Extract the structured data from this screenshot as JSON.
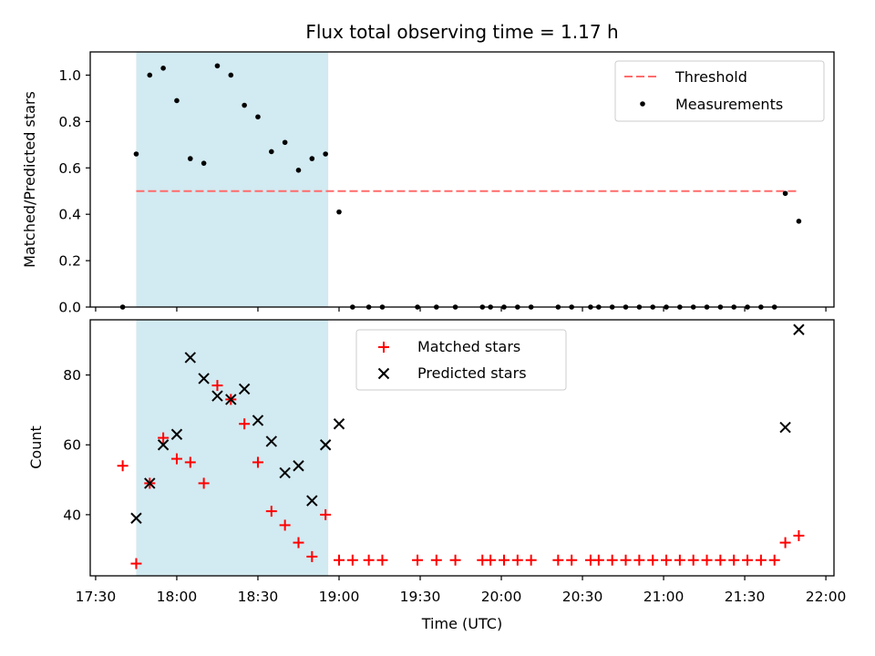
{
  "chart_data": [
    {
      "type": "scatter",
      "title": "Flux total observing time = 1.17 h",
      "xlabel": "",
      "ylabel": "Matched/Predicted stars",
      "xlim": [
        "17:28",
        "22:03"
      ],
      "ylim": [
        0,
        1.1
      ],
      "yticks": [
        "0.0",
        "0.2",
        "0.4",
        "0.6",
        "0.8",
        "1.0"
      ],
      "legend_position": "top-right",
      "shaded_interval": [
        "17:45",
        "18:56"
      ],
      "shade_color": "#add8e6",
      "threshold": {
        "name": "Threshold",
        "value": 0.5,
        "x_range": [
          "17:45",
          "21:50"
        ],
        "color": "#ff6b6b",
        "style": "dashed"
      },
      "series": [
        {
          "name": "Measurements",
          "marker": "dot",
          "color": "#000000",
          "points": [
            [
              "17:40",
              0.0
            ],
            [
              "17:45",
              0.66
            ],
            [
              "17:50",
              1.0
            ],
            [
              "17:55",
              1.03
            ],
            [
              "18:00",
              0.89
            ],
            [
              "18:05",
              0.64
            ],
            [
              "18:10",
              0.62
            ],
            [
              "18:15",
              1.04
            ],
            [
              "18:20",
              1.0
            ],
            [
              "18:25",
              0.87
            ],
            [
              "18:30",
              0.82
            ],
            [
              "18:35",
              0.67
            ],
            [
              "18:40",
              0.71
            ],
            [
              "18:45",
              0.59
            ],
            [
              "18:50",
              0.64
            ],
            [
              "18:55",
              0.66
            ],
            [
              "19:00",
              0.41
            ],
            [
              "19:05",
              0.0
            ],
            [
              "19:11",
              0.0
            ],
            [
              "19:16",
              0.0
            ],
            [
              "19:29",
              0.0
            ],
            [
              "19:36",
              0.0
            ],
            [
              "19:43",
              0.0
            ],
            [
              "19:53",
              0.0
            ],
            [
              "19:56",
              0.0
            ],
            [
              "20:01",
              0.0
            ],
            [
              "20:06",
              0.0
            ],
            [
              "20:11",
              0.0
            ],
            [
              "20:21",
              0.0
            ],
            [
              "20:26",
              0.0
            ],
            [
              "20:33",
              0.0
            ],
            [
              "20:36",
              0.0
            ],
            [
              "20:41",
              0.0
            ],
            [
              "20:46",
              0.0
            ],
            [
              "20:51",
              0.0
            ],
            [
              "20:56",
              0.0
            ],
            [
              "21:01",
              0.0
            ],
            [
              "21:06",
              0.0
            ],
            [
              "21:11",
              0.0
            ],
            [
              "21:16",
              0.0
            ],
            [
              "21:21",
              0.0
            ],
            [
              "21:26",
              0.0
            ],
            [
              "21:31",
              0.0
            ],
            [
              "21:36",
              0.0
            ],
            [
              "21:41",
              0.0
            ],
            [
              "21:45",
              0.49
            ],
            [
              "21:50",
              0.37
            ]
          ]
        }
      ]
    },
    {
      "type": "scatter",
      "title": "",
      "xlabel": "Time (UTC)",
      "ylabel": "Count",
      "xlim": [
        "17:28",
        "22:03"
      ],
      "ylim": [
        22.5,
        95.8
      ],
      "yticks": [
        "40",
        "60",
        "80"
      ],
      "xticks": [
        "17:30",
        "18:00",
        "18:30",
        "19:00",
        "19:30",
        "20:00",
        "20:30",
        "21:00",
        "21:30",
        "22:00"
      ],
      "legend_position": "top-center",
      "shaded_interval": [
        "17:45",
        "18:56"
      ],
      "shade_color": "#add8e6",
      "series": [
        {
          "name": "Matched stars",
          "marker": "plus",
          "color": "#ff0000",
          "points": [
            [
              "17:40",
              54
            ],
            [
              "17:45",
              26
            ],
            [
              "17:50",
              49
            ],
            [
              "17:55",
              62
            ],
            [
              "18:00",
              56
            ],
            [
              "18:05",
              55
            ],
            [
              "18:10",
              49
            ],
            [
              "18:15",
              77
            ],
            [
              "18:20",
              73
            ],
            [
              "18:25",
              66
            ],
            [
              "18:30",
              55
            ],
            [
              "18:35",
              41
            ],
            [
              "18:40",
              37
            ],
            [
              "18:45",
              32
            ],
            [
              "18:50",
              28
            ],
            [
              "18:55",
              40
            ],
            [
              "19:00",
              27
            ],
            [
              "19:05",
              27
            ],
            [
              "19:11",
              27
            ],
            [
              "19:16",
              27
            ],
            [
              "19:29",
              27
            ],
            [
              "19:36",
              27
            ],
            [
              "19:43",
              27
            ],
            [
              "19:53",
              27
            ],
            [
              "19:56",
              27
            ],
            [
              "20:01",
              27
            ],
            [
              "20:06",
              27
            ],
            [
              "20:11",
              27
            ],
            [
              "20:21",
              27
            ],
            [
              "20:26",
              27
            ],
            [
              "20:33",
              27
            ],
            [
              "20:36",
              27
            ],
            [
              "20:41",
              27
            ],
            [
              "20:46",
              27
            ],
            [
              "20:51",
              27
            ],
            [
              "20:56",
              27
            ],
            [
              "21:01",
              27
            ],
            [
              "21:06",
              27
            ],
            [
              "21:11",
              27
            ],
            [
              "21:16",
              27
            ],
            [
              "21:21",
              27
            ],
            [
              "21:26",
              27
            ],
            [
              "21:31",
              27
            ],
            [
              "21:36",
              27
            ],
            [
              "21:41",
              27
            ],
            [
              "21:45",
              32
            ],
            [
              "21:50",
              34
            ]
          ]
        },
        {
          "name": "Predicted stars",
          "marker": "x",
          "color": "#000000",
          "points": [
            [
              "17:45",
              39
            ],
            [
              "17:50",
              49
            ],
            [
              "17:55",
              60
            ],
            [
              "18:00",
              63
            ],
            [
              "18:05",
              85
            ],
            [
              "18:10",
              79
            ],
            [
              "18:15",
              74
            ],
            [
              "18:20",
              73
            ],
            [
              "18:25",
              76
            ],
            [
              "18:30",
              67
            ],
            [
              "18:35",
              61
            ],
            [
              "18:40",
              52
            ],
            [
              "18:45",
              54
            ],
            [
              "18:50",
              44
            ],
            [
              "18:55",
              60
            ],
            [
              "19:00",
              66
            ],
            [
              "21:45",
              65
            ],
            [
              "21:50",
              93
            ]
          ]
        }
      ]
    }
  ]
}
